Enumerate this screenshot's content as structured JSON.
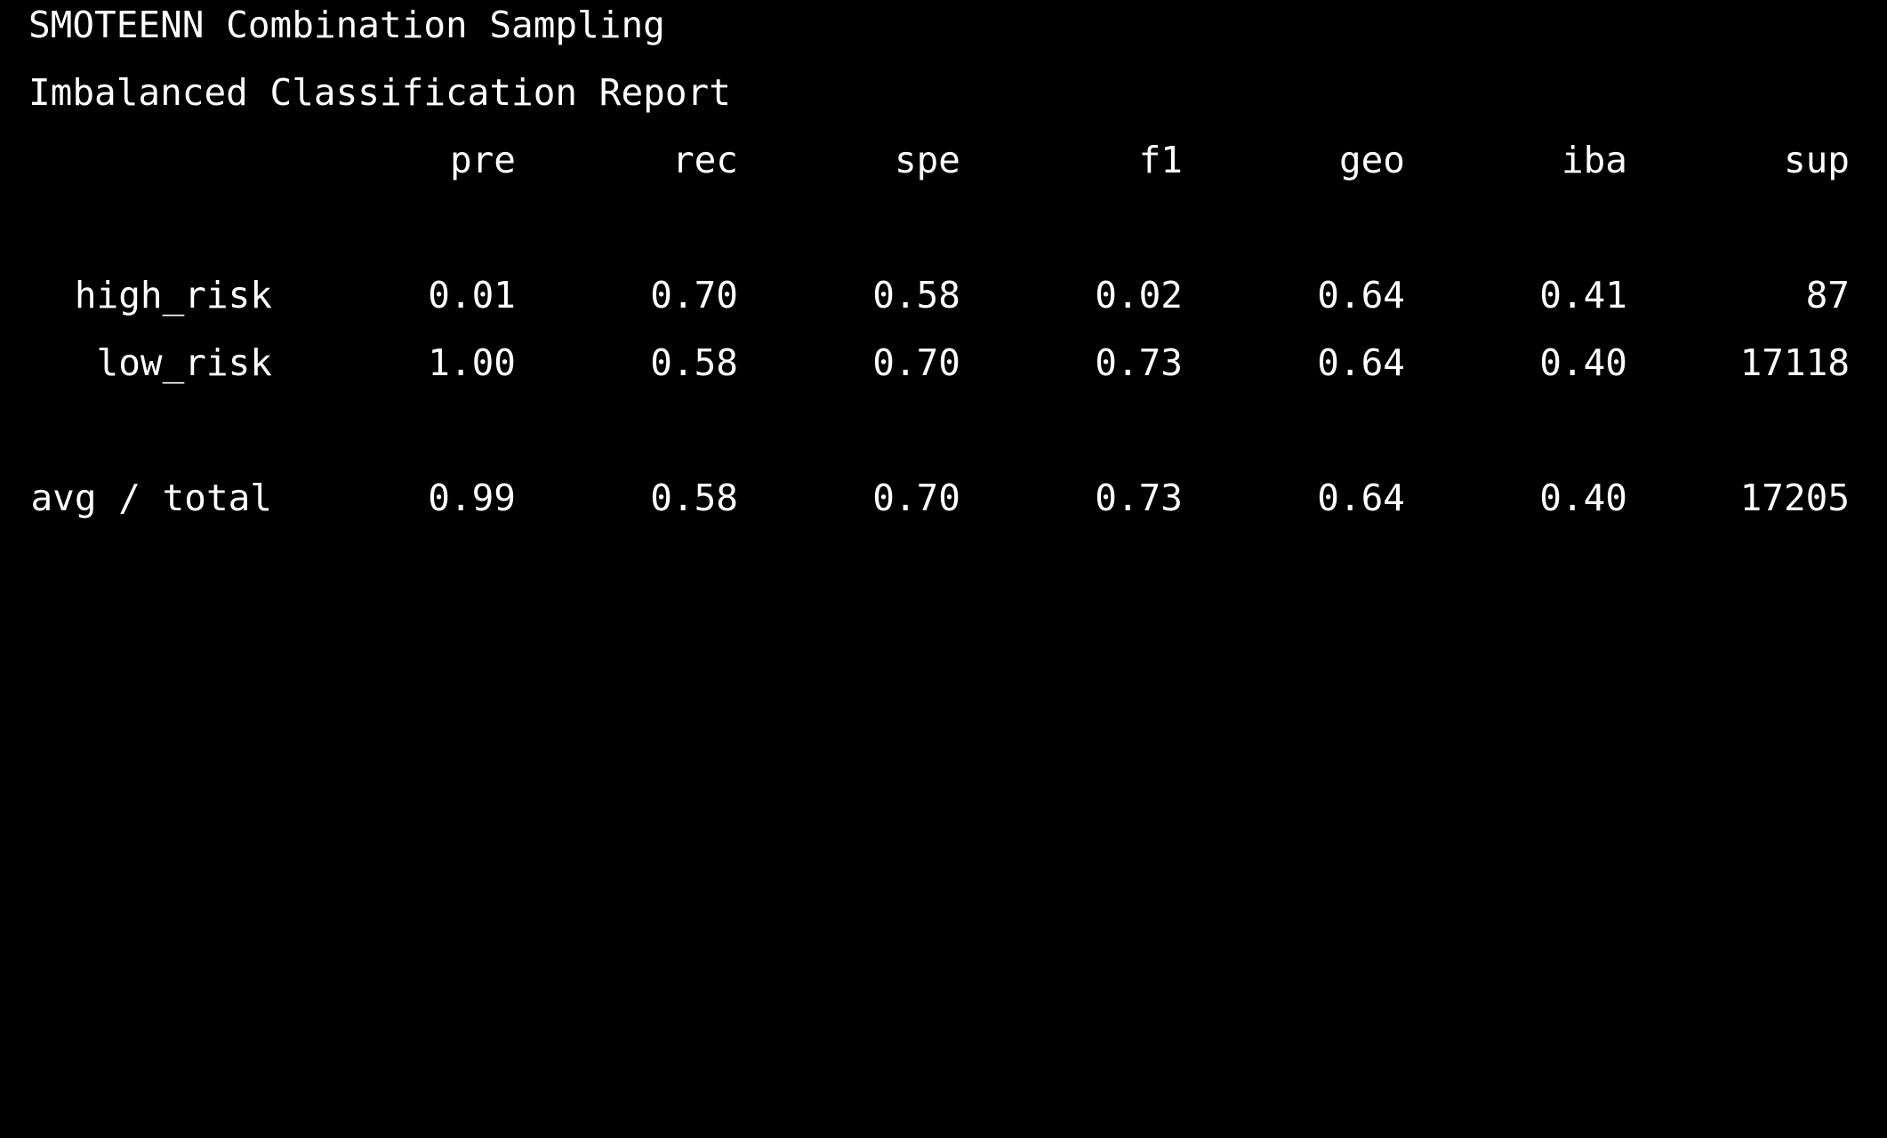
{
  "terminal": {
    "background": "#000000",
    "foreground": "#ffffff",
    "title": "SMOTEENN Combination Sampling",
    "subtitle": "Imbalanced Classification Report"
  },
  "report": {
    "columns": [
      "pre",
      "rec",
      "spe",
      "f1",
      "geo",
      "iba",
      "sup"
    ],
    "rows": [
      {
        "label": "high_risk",
        "values": [
          "0.01",
          "0.70",
          "0.58",
          "0.02",
          "0.64",
          "0.41",
          "87"
        ]
      },
      {
        "label": "low_risk",
        "values": [
          "1.00",
          "0.58",
          "0.70",
          "0.73",
          "0.64",
          "0.40",
          "17118"
        ]
      }
    ],
    "total": {
      "label": "avg / total",
      "values": [
        "0.99",
        "0.58",
        "0.70",
        "0.73",
        "0.64",
        "0.40",
        "17205"
      ]
    }
  }
}
